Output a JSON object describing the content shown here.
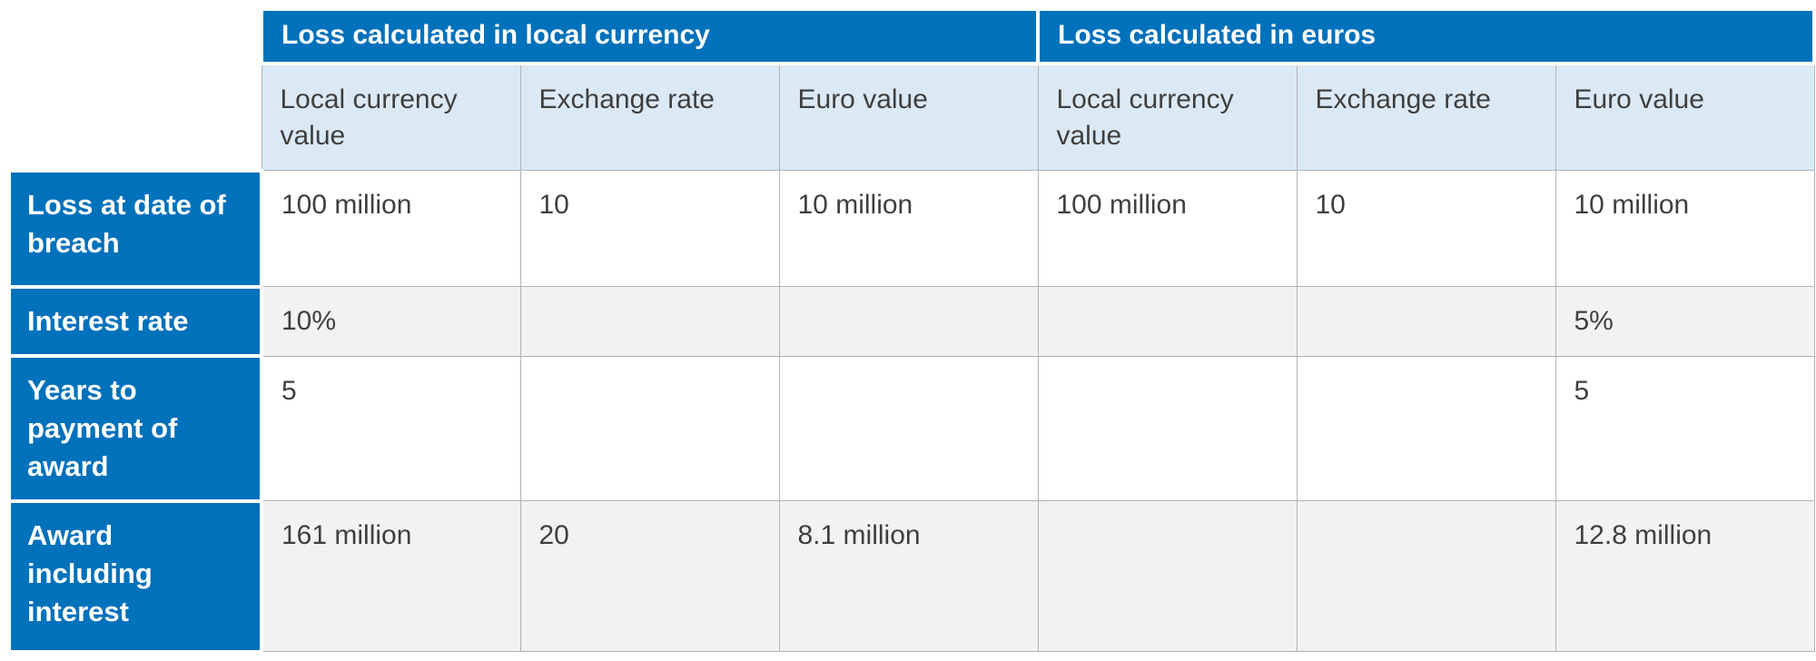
{
  "table": {
    "group_headers": [
      "Loss calculated in local currency",
      "Loss calculated in euros"
    ],
    "column_headers": [
      "Local currency value",
      "Exchange rate",
      "Euro value",
      "Local currency value",
      "Exchange rate",
      "Euro value"
    ],
    "rows": [
      {
        "header": "Loss at date of breach",
        "cells": [
          "100 million",
          "10",
          "10 million",
          "100 million",
          "10",
          "10 million"
        ]
      },
      {
        "header": "Interest rate",
        "cells": [
          "10%",
          "",
          "",
          "",
          "",
          "5%"
        ]
      },
      {
        "header": "Years to payment of award",
        "cells": [
          "5",
          "",
          "",
          "",
          "",
          "5"
        ]
      },
      {
        "header": "Award including interest",
        "cells": [
          "161 million",
          "20",
          "8.1 million",
          "",
          "",
          "12.8 million"
        ]
      }
    ],
    "colors": {
      "header_blue": "#0071bb",
      "subheader_blue": "#dbe9f5",
      "row_alt": "#f2f2f2",
      "text": "#3f3f3e",
      "border": "#b3b3b3"
    }
  }
}
